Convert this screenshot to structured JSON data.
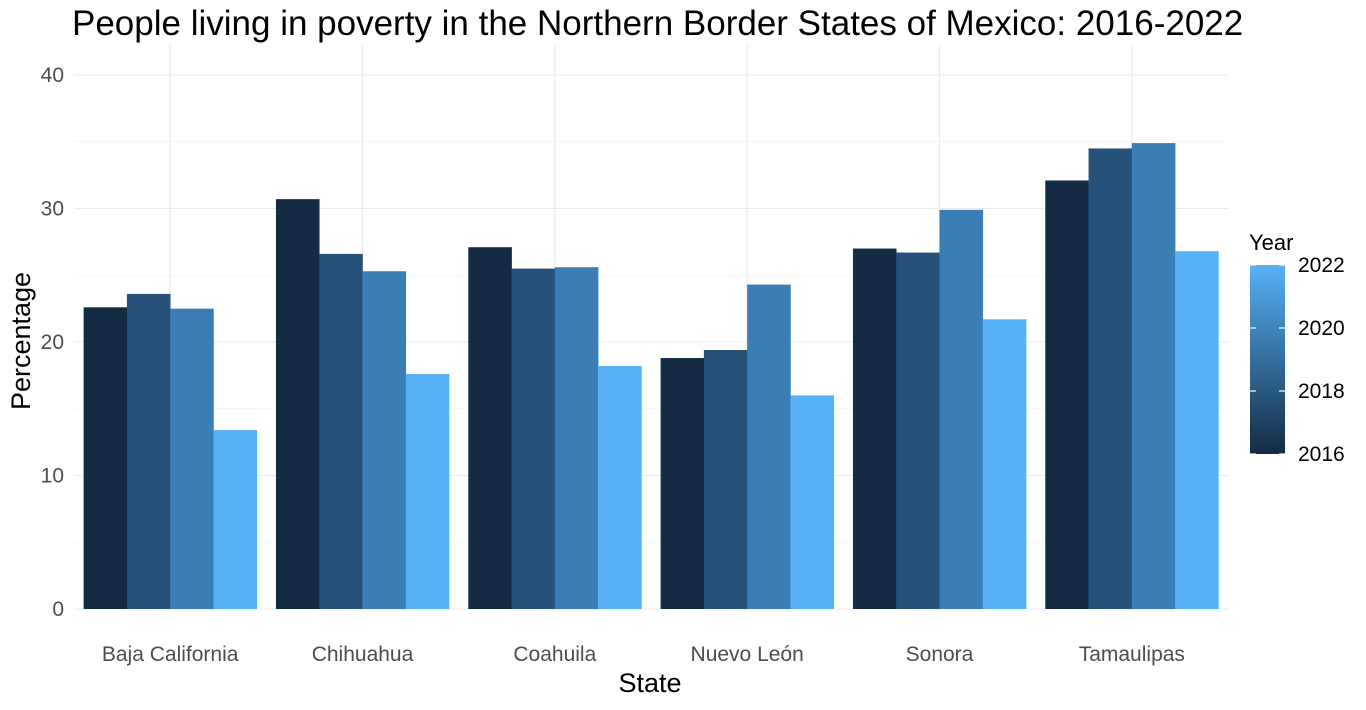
{
  "chart_data": {
    "type": "bar",
    "title": "People living in poverty in the Northern Border States of Mexico: 2016-2022",
    "xlabel": "State",
    "ylabel": "Percentage",
    "categories": [
      "Baja California",
      "Chihuahua",
      "Coahuila",
      "Nuevo León",
      "Sonora",
      "Tamaulipas"
    ],
    "series": [
      {
        "name": "2016",
        "color": "#132b43",
        "values": [
          22.6,
          30.7,
          27.1,
          18.8,
          27.0,
          32.1
        ]
      },
      {
        "name": "2018",
        "color": "#26527a",
        "values": [
          23.6,
          26.6,
          25.5,
          19.4,
          26.7,
          34.5
        ]
      },
      {
        "name": "2020",
        "color": "#3b7db5",
        "values": [
          22.5,
          25.3,
          25.6,
          24.3,
          29.9,
          34.9
        ]
      },
      {
        "name": "2022",
        "color": "#56b1f7",
        "values": [
          13.4,
          17.6,
          18.2,
          16.0,
          21.7,
          26.8
        ]
      }
    ],
    "ylim": [
      0,
      40
    ],
    "y_ticks": [
      0,
      10,
      20,
      30,
      40
    ],
    "grid": true,
    "legend": {
      "title": "Year",
      "placement": "right",
      "type": "colorbar",
      "range": [
        2016,
        2022
      ],
      "labels": [
        "2022",
        "2020",
        "2018",
        "2016"
      ],
      "low_color": "#132b43",
      "high_color": "#56b1f7"
    }
  }
}
